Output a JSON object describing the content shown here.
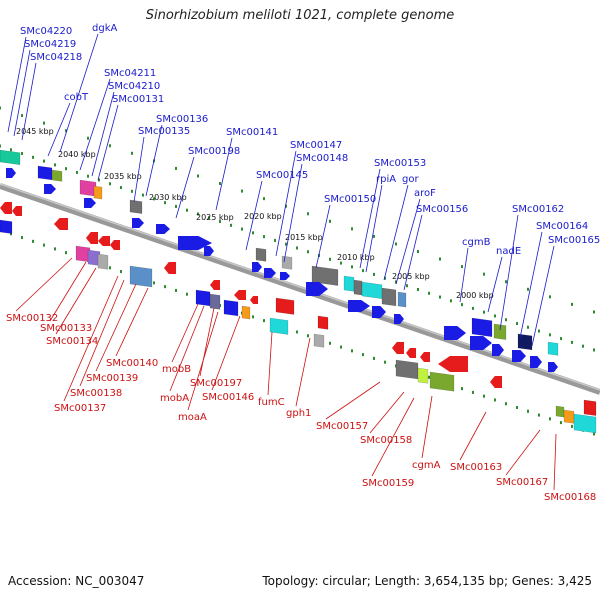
{
  "title": "Sinorhizobium meliloti 1021, complete genome",
  "footer": {
    "accession": "Accession: NC_003047",
    "summary": "Topology: circular; Length: 3,654,135 bp; Genes: 3,425"
  },
  "colors": {
    "forward_label": "#1a1acc",
    "reverse_label": "#cc1111",
    "backbone": "#888888",
    "tick": "#2e8b2e"
  },
  "scale_ticks": [
    "2045 kbp",
    "2040 kbp",
    "2035 kbp",
    "2030 kbp",
    "2025 kbp",
    "2020 kbp",
    "2015 kbp",
    "2010 kbp",
    "2005 kbp",
    "2000 kbp"
  ],
  "forward_labels": [
    "SMc04220",
    "SMc04219",
    "SMc04218",
    "dgkA",
    "cobT",
    "SMc04211",
    "SMc04210",
    "SMc00131",
    "SMc00136",
    "SMc00135",
    "SMc00141",
    "SMc00198",
    "SMc00147",
    "SMc00148",
    "SMc00145",
    "SMc00153",
    "rpiA",
    "gor",
    "aroF",
    "SMc00150",
    "SMc00156",
    "SMc00162",
    "SMc00164",
    "SMc00165",
    "cgmB",
    "nadE"
  ],
  "reverse_labels": [
    "SMc00132",
    "SMc00133",
    "SMc00134",
    "SMc00140",
    "SMc00139",
    "SMc00138",
    "SMc00137",
    "mobB",
    "SMc00197",
    "mobA",
    "moaA",
    "SMc00146",
    "fumC",
    "gph1",
    "SMc00157",
    "SMc00158",
    "SMc00159",
    "cgmA",
    "SMc00163",
    "SMc00167",
    "SMc00168"
  ]
}
